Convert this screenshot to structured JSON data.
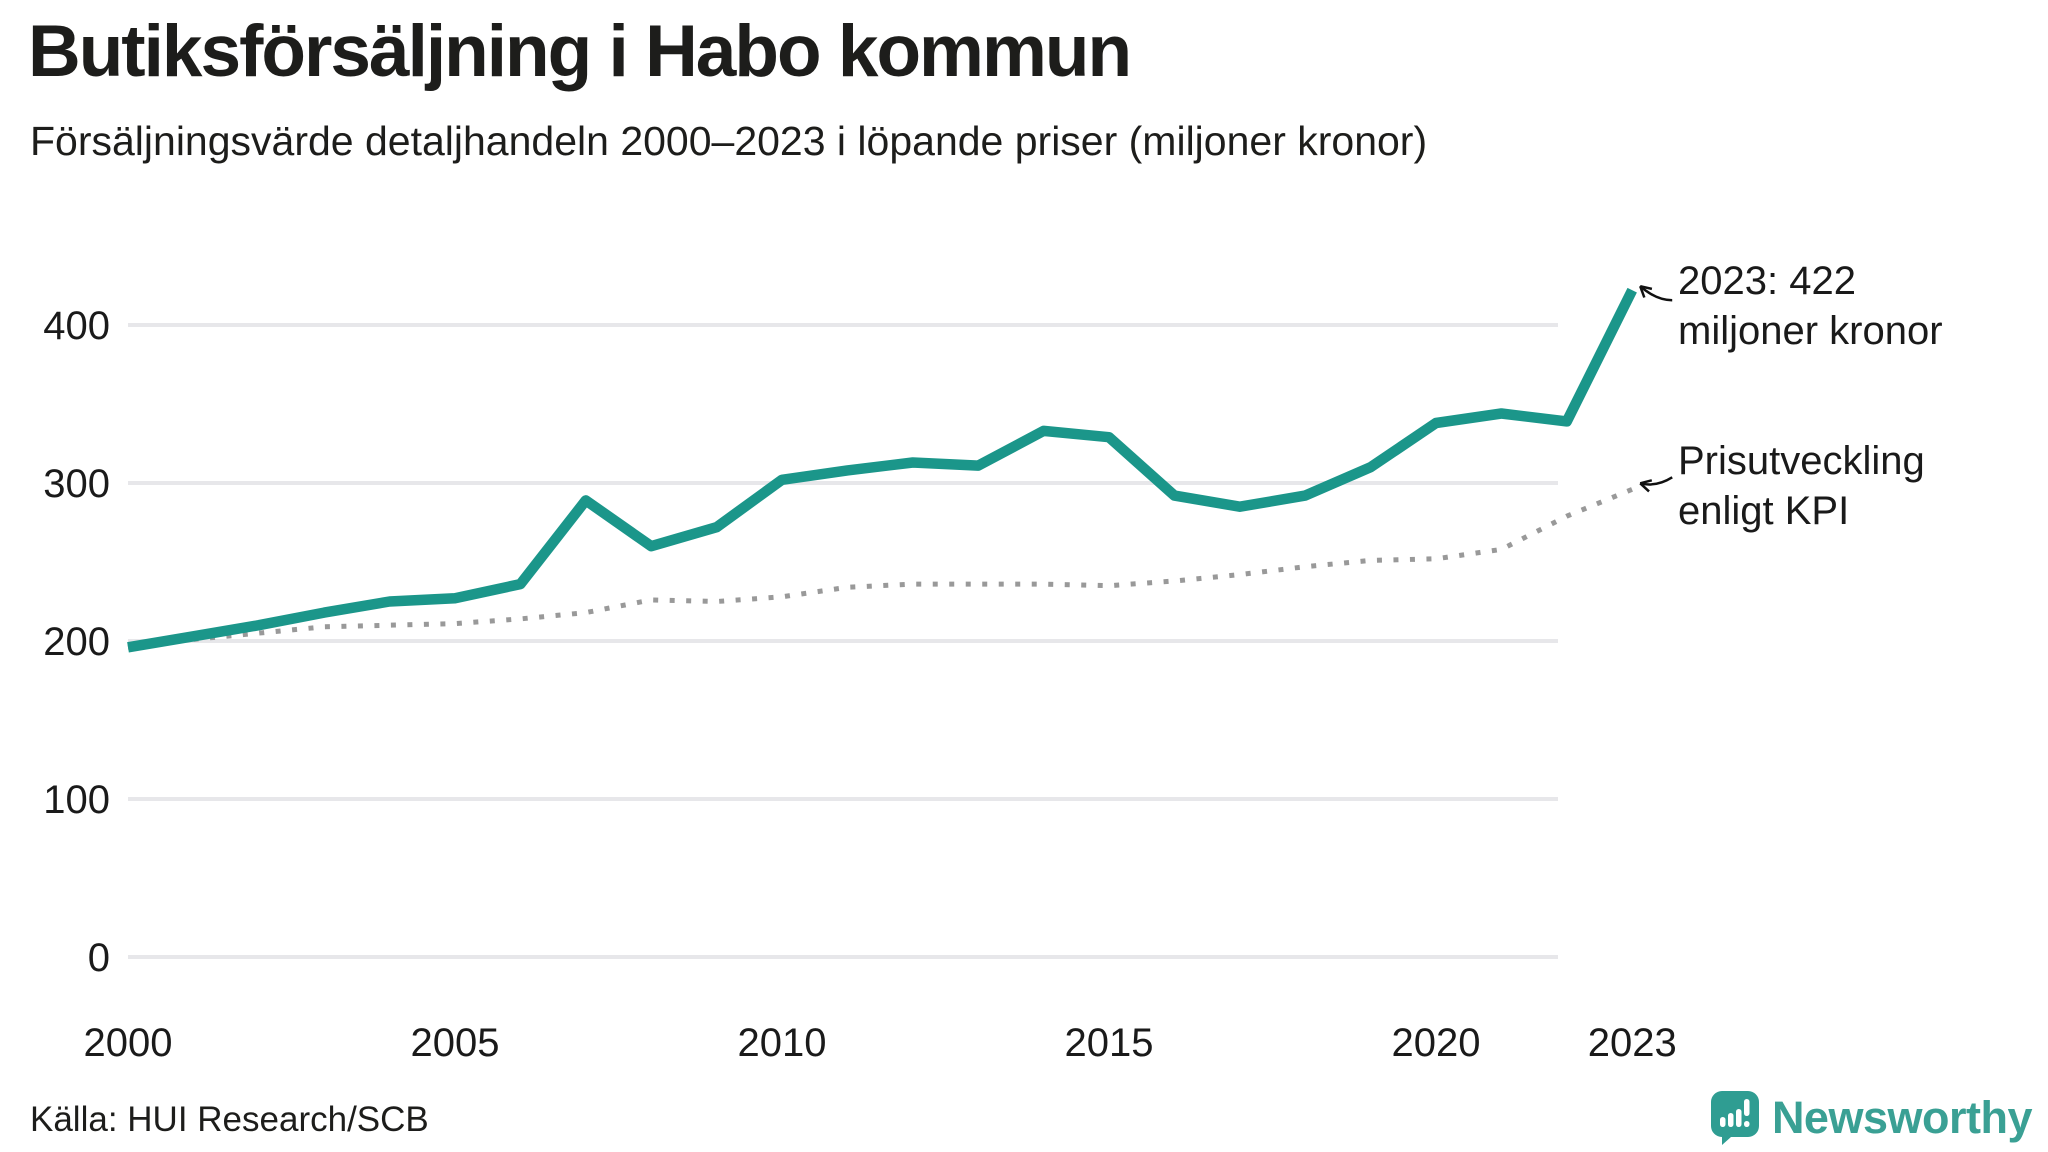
{
  "header": {
    "title": "Butiksförsäljning i Habo kommun",
    "subtitle": "Försäljningsvärde detaljhandeln 2000–2023 i löpande priser (miljoner kronor)"
  },
  "chart_data": {
    "type": "line",
    "x": [
      2000,
      2001,
      2002,
      2003,
      2004,
      2005,
      2006,
      2007,
      2008,
      2009,
      2010,
      2011,
      2012,
      2013,
      2014,
      2015,
      2016,
      2017,
      2018,
      2019,
      2020,
      2021,
      2022,
      2023
    ],
    "series": [
      {
        "name": "butiksforsaljning-lopande-priser",
        "style": "solid",
        "values": [
          196,
          203,
          210,
          218,
          225,
          227,
          236,
          289,
          260,
          272,
          302,
          308,
          313,
          311,
          333,
          329,
          292,
          285,
          292,
          310,
          338,
          344,
          339,
          422
        ]
      },
      {
        "name": "prisutveckling-enligt-kpi",
        "style": "dotted",
        "values": [
          196,
          201,
          205,
          209,
          210,
          211,
          214,
          218,
          226,
          225,
          228,
          234,
          236,
          236,
          236,
          235,
          238,
          242,
          247,
          251,
          252,
          258,
          279,
          296
        ]
      }
    ],
    "yticks": [
      0,
      100,
      200,
      300,
      400
    ],
    "xticks": [
      2000,
      2005,
      2010,
      2015,
      2020,
      2023
    ],
    "ylim": [
      0,
      440
    ],
    "grid": "horizontal",
    "legend": "none",
    "annotations": [
      {
        "lines": [
          "2023: 422",
          "miljoner kronor"
        ],
        "target_series": 0
      },
      {
        "lines": [
          "Prisutveckling",
          "enligt KPI"
        ],
        "target_series": 1
      }
    ]
  },
  "footer": {
    "source": "Källa: HUI Research/SCB",
    "brand": "Newsworthy"
  },
  "colors": {
    "accent_teal": "#1b968a",
    "kpi_gray": "#999999",
    "grid": "#e7e7ea",
    "text": "#1a1a1a",
    "brand_teal": "#3aa094"
  }
}
